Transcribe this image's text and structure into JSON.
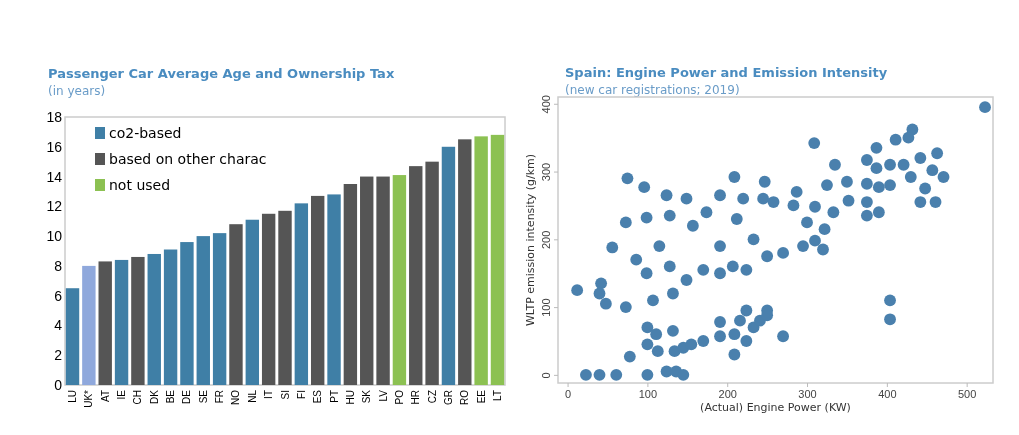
{
  "chart_data": [
    {
      "type": "bar",
      "title": "Passenger Car Average Age and Ownership Tax",
      "subtitle": "(in years)",
      "categories": [
        "LU",
        "UK*",
        "AT",
        "IE",
        "CH",
        "DK",
        "BE",
        "DE",
        "SE",
        "FR",
        "NO",
        "NL",
        "IT",
        "SI",
        "FI",
        "ES",
        "PT",
        "HU",
        "SK",
        "LV",
        "PO",
        "HR",
        "CZ",
        "GR",
        "RO",
        "EE",
        "LT"
      ],
      "stacked": true,
      "series": [
        {
          "name": "co2-based",
          "color": "#3f7fa6",
          "values": [
            6.5,
            null,
            null,
            8.4,
            null,
            8.8,
            9.1,
            9.6,
            10.0,
            10.2,
            null,
            11.1,
            null,
            null,
            12.2,
            null,
            12.8,
            null,
            null,
            null,
            null,
            null,
            null,
            16.0,
            null,
            null,
            null
          ]
        },
        {
          "name": "based on other charac",
          "color": "#555555",
          "values": [
            null,
            null,
            8.3,
            null,
            8.6,
            null,
            null,
            null,
            null,
            null,
            10.8,
            null,
            11.5,
            11.7,
            null,
            12.7,
            null,
            13.5,
            14.0,
            14.0,
            null,
            14.7,
            15.0,
            null,
            16.5,
            null,
            null
          ]
        },
        {
          "name": "not used",
          "color": "#8cc152",
          "values": [
            null,
            null,
            null,
            null,
            null,
            null,
            null,
            null,
            null,
            null,
            null,
            null,
            null,
            null,
            null,
            null,
            null,
            null,
            null,
            null,
            14.1,
            null,
            null,
            null,
            null,
            16.7,
            16.8
          ]
        },
        {
          "color": "#8fa8dc",
          "values": [
            null,
            8.0,
            null,
            null,
            null,
            null,
            null,
            null,
            null,
            null,
            null,
            null,
            null,
            null,
            null,
            null,
            null,
            null,
            null,
            null,
            null,
            null,
            null,
            null,
            null,
            null,
            null
          ]
        }
      ],
      "ylim": [
        0,
        18
      ],
      "yticks": [
        0,
        2,
        4,
        6,
        8,
        10,
        12,
        14,
        16,
        18
      ],
      "legend": "top left"
    },
    {
      "type": "scatter",
      "title": "Spain: Engine Power and Emission Intensity",
      "subtitle": "(new car registrations; 2019)",
      "xlabel": "(Actual) Engine Power (KW)",
      "ylabel": "WLTP emission intensity (g/km)",
      "color": "#4a80ad",
      "marker": "circle",
      "x": [
        523,
        432,
        411,
        427,
        463,
        471,
        457,
        375,
        387,
        387,
        404,
        421,
        442,
        430,
        404,
        375,
        390,
        375,
        375,
        390,
        442,
        461,
        448,
        404,
        404,
        309,
        335,
        350,
        352,
        333,
        325,
        322,
        320,
        310,
        310,
        287,
        295,
        300,
        270,
        270,
        247,
        209,
        191,
        220,
        245,
        258,
        283,
        250,
        224,
        207,
        191,
        170,
        157,
        174,
        149,
        124,
        96,
        75,
        73,
        56,
        42,
        48,
        73,
        107,
        132,
        149,
        40,
        12,
        99,
        128,
        191,
        233,
        212,
        115,
        86,
        128,
        99,
        78,
        23,
        40,
        61,
        100,
        124,
        136,
        145,
        100,
        100,
        111,
        113,
        132,
        134,
        145,
        155,
        170,
        191,
        191,
        209,
        209,
        224,
        224,
        233,
        241,
        250,
        250,
        216
      ],
      "values": [
        395,
        362,
        347,
        350,
        327,
        292,
        302,
        317,
        335,
        305,
        310,
        310,
        320,
        292,
        280,
        282,
        277,
        255,
        235,
        240,
        255,
        255,
        275,
        110,
        82,
        342,
        310,
        285,
        257,
        240,
        280,
        215,
        185,
        198,
        248,
        270,
        190,
        225,
        180,
        57,
        285,
        292,
        265,
        260,
        260,
        255,
        250,
        175,
        155,
        160,
        150,
        155,
        220,
        240,
        260,
        265,
        277,
        290,
        225,
        188,
        135,
        105,
        100,
        110,
        120,
        140,
        120,
        125,
        232,
        235,
        190,
        200,
        230,
        190,
        170,
        160,
        150,
        27,
        0,
        0,
        0,
        0,
        5,
        5,
        0,
        70,
        45,
        60,
        35,
        65,
        35,
        40,
        45,
        50,
        78,
        57,
        60,
        30,
        95,
        50,
        70,
        80,
        95,
        88,
        80
      ],
      "xlim": [
        -12,
        533
      ],
      "ylim": [
        -12,
        410
      ],
      "xticks": [
        0,
        100,
        200,
        300,
        400,
        500
      ],
      "yticks": [
        0,
        100,
        200,
        300,
        400
      ]
    }
  ]
}
